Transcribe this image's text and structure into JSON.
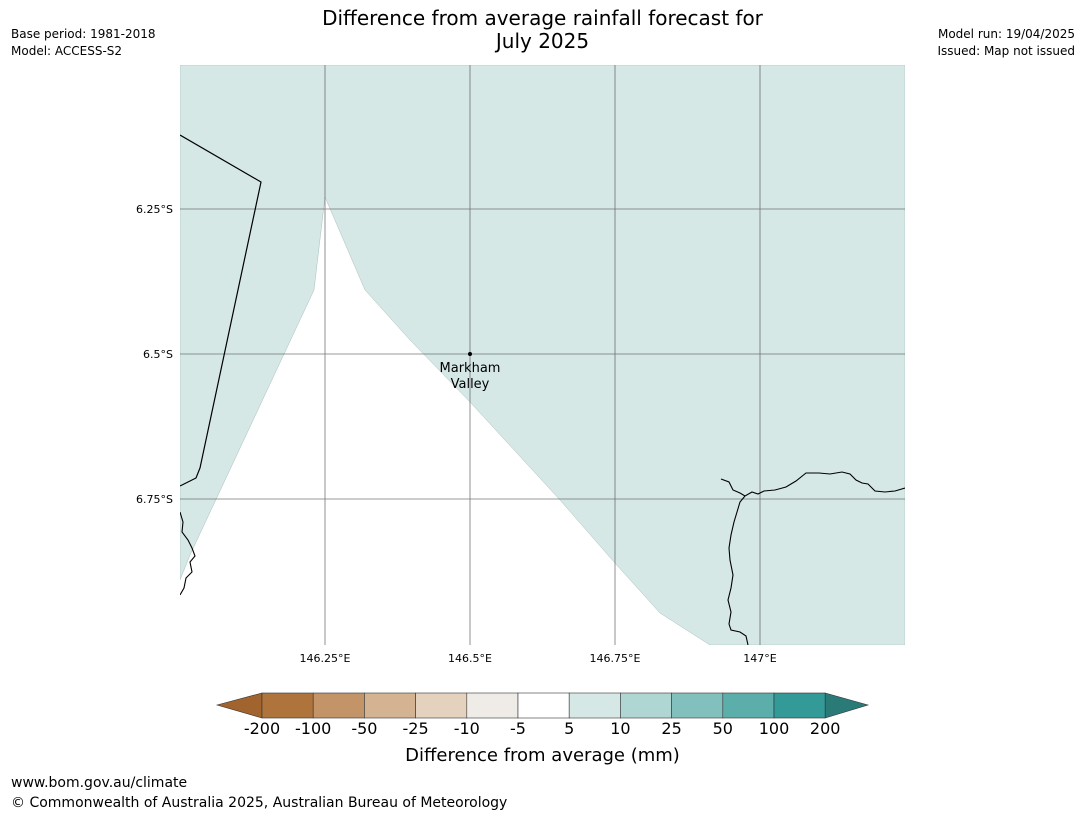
{
  "header": {
    "title_line1": "Difference from average rainfall forecast for",
    "title_line2": "July 2025",
    "base_period": "Base period: 1981-2018",
    "model": "Model: ACCESS-S2",
    "model_run": "Model run: 19/04/2025",
    "issued": "Issued: Map not issued"
  },
  "map": {
    "lat_labels": [
      "6.25°S",
      "6.5°S",
      "6.75°S"
    ],
    "lon_labels": [
      "146.25°E",
      "146.5°E",
      "146.75°E",
      "147°E"
    ],
    "place_label_line1": "Markham",
    "place_label_line2": "Valley",
    "fill_color": "#d5e8e6",
    "neutral_color": "#ffffff"
  },
  "legend": {
    "title": "Difference from average (mm)",
    "tick_labels": [
      "-200",
      "-100",
      "-50",
      "-25",
      "-10",
      "-5",
      "5",
      "10",
      "25",
      "50",
      "100",
      "200"
    ],
    "colors": [
      "#a1642e",
      "#af743c",
      "#c29467",
      "#d4b393",
      "#e4d1be",
      "#efebe7",
      "#ffffff",
      "#d5e8e6",
      "#b0d6d4",
      "#82c0bd",
      "#5caeab",
      "#339a98",
      "#2a7b78"
    ]
  },
  "footer": {
    "url": "www.bom.gov.au/climate",
    "copyright": "© Commonwealth of Australia 2025, Australian Bureau of Meteorology"
  }
}
